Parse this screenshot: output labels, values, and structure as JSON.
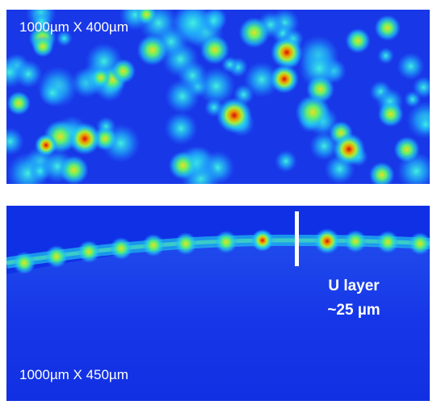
{
  "top_panel": {
    "label": "1000µm X 400µm"
  },
  "bottom_panel": {
    "label": "1000µm X 450µm",
    "annotation": {
      "line1": "U layer",
      "line2": "~25 µm"
    }
  }
}
